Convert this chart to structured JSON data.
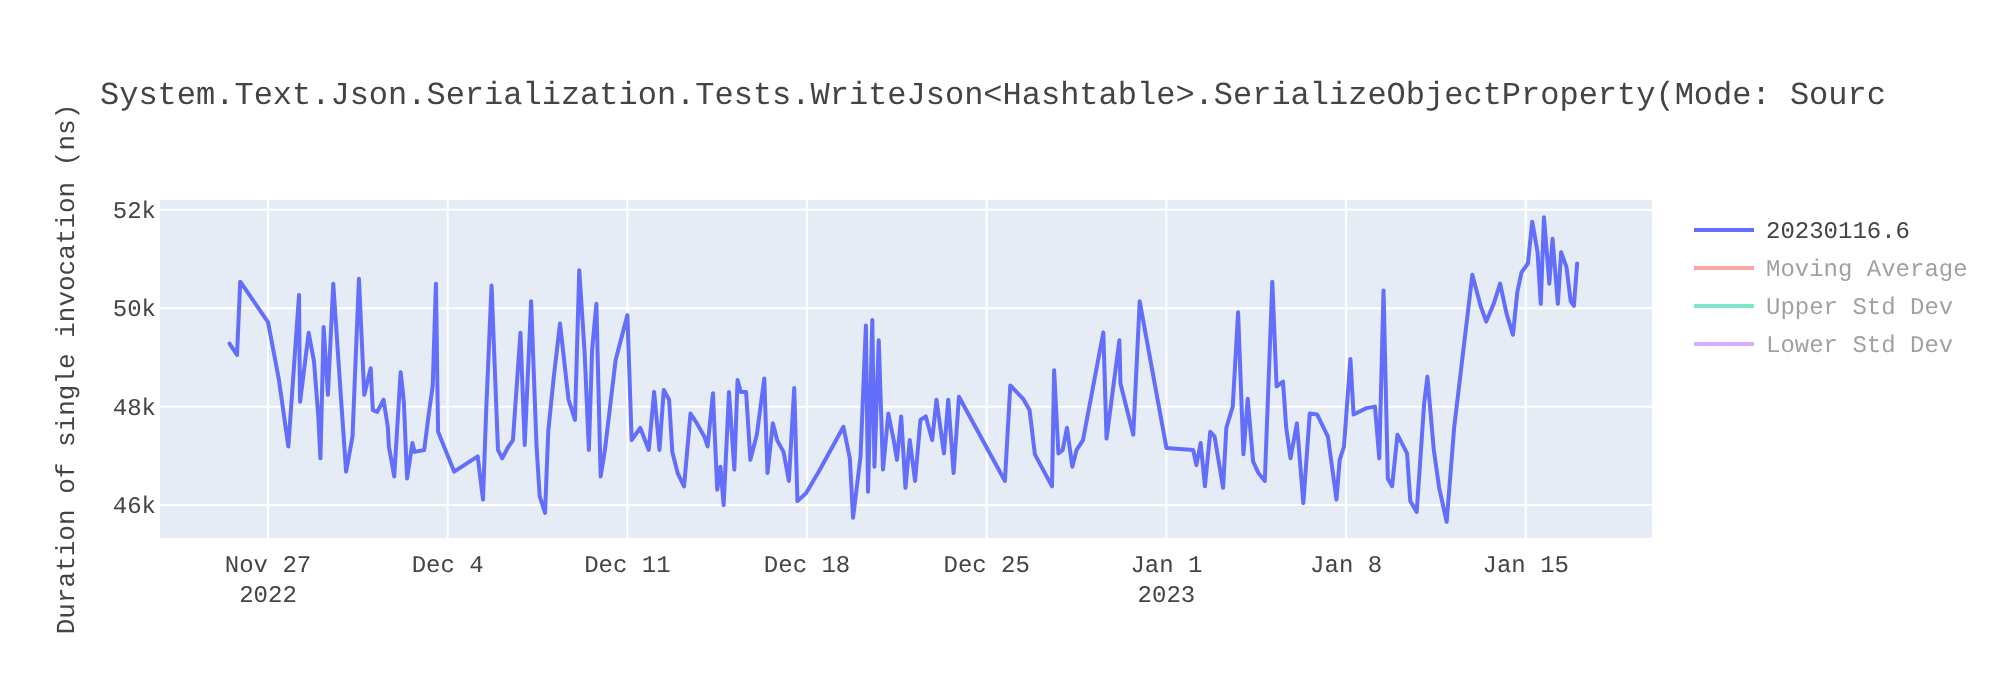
{
  "chart_data": {
    "type": "line",
    "title": "System.Text.Json.Serialization.Tests.WriteJson<Hashtable>.SerializeObjectProperty(Mode: Sourc",
    "ylabel": "Duration of single invocation (ns)",
    "xlim": [
      "2022-11-22T19:00",
      "2023-01-19T22:00"
    ],
    "xticks": [
      {
        "value": "2022-11-27",
        "label": "Nov 27\n2022"
      },
      {
        "value": "2022-12-04",
        "label": "Dec 4"
      },
      {
        "value": "2022-12-11",
        "label": "Dec 11"
      },
      {
        "value": "2022-12-18",
        "label": "Dec 18"
      },
      {
        "value": "2022-12-25",
        "label": "Dec 25"
      },
      {
        "value": "2023-01-01",
        "label": "Jan 1\n2023"
      },
      {
        "value": "2023-01-08",
        "label": "Jan 8"
      },
      {
        "value": "2023-01-15",
        "label": "Jan 15"
      }
    ],
    "ylim": [
      45330,
      52200
    ],
    "yticks": [
      {
        "value": 46000,
        "label": "46k"
      },
      {
        "value": 48000,
        "label": "48k"
      },
      {
        "value": 50000,
        "label": "50k"
      },
      {
        "value": 52000,
        "label": "52k"
      }
    ],
    "grid": true,
    "legend": "top right",
    "series": [
      {
        "name": "20230116.6",
        "color": "#636efa",
        "x": [
          "2022-11-25T12:00",
          "2022-11-25T19:00",
          "2022-11-25T22:00",
          "2022-11-27T00:00",
          "2022-11-27T10:00",
          "2022-11-27T19:00",
          "2022-11-28T05:00",
          "2022-11-28T05:30",
          "2022-11-28T06:00",
          "2022-11-28T14:00",
          "2022-11-28T19:00",
          "2022-11-28T23:00",
          "2022-11-29T01:00",
          "2022-11-29T04:00",
          "2022-11-29T08:00",
          "2022-11-29T13:00",
          "2022-11-29T20:00",
          "2022-11-30T01:00",
          "2022-11-30T07:00",
          "2022-11-30T13:00",
          "2022-11-30T18:00",
          "2022-12-01T00:00",
          "2022-12-01T02:00",
          "2022-12-01T06:00",
          "2022-12-01T12:00",
          "2022-12-01T16:00",
          "2022-12-01T17:00",
          "2022-12-01T22:00",
          "2022-12-02T04:00",
          "2022-12-02T07:00",
          "2022-12-02T10:00",
          "2022-12-02T15:00",
          "2022-12-02T17:00",
          "2022-12-03T02:00",
          "2022-12-03T06:00",
          "2022-12-03T10:00",
          "2022-12-03T13:00",
          "2022-12-03T15:00",
          "2022-12-04T06:00",
          "2022-12-05T04:00",
          "2022-12-05T09:00",
          "2022-12-05T12:00",
          "2022-12-05T17:00",
          "2022-12-05T23:00",
          "2022-12-06T03:00",
          "2022-12-06T08:00",
          "2022-12-06T13:00",
          "2022-12-06T20:00",
          "2022-12-07T00:00",
          "2022-12-07T06:00",
          "2022-12-07T11:00",
          "2022-12-07T14:00",
          "2022-12-07T19:00",
          "2022-12-07T22:00",
          "2022-12-08T03:00",
          "2022-12-08T09:00",
          "2022-12-08T17:00",
          "2022-12-08T23:00",
          "2022-12-09T03:00",
          "2022-12-09T08:00",
          "2022-12-09T12:00",
          "2022-12-09T15:00",
          "2022-12-09T19:00",
          "2022-12-09T23:00",
          "2022-12-10T03:00",
          "2022-12-10T13:00",
          "2022-12-11T00:00",
          "2022-12-11T04:00",
          "2022-12-11T12:00",
          "2022-12-11T20:00",
          "2022-12-12T01:00",
          "2022-12-12T06:00",
          "2022-12-12T10:00",
          "2022-12-12T15:00",
          "2022-12-12T18:00",
          "2022-12-12T23:00",
          "2022-12-13T05:00",
          "2022-12-13T11:00",
          "2022-12-13T17:00",
          "2022-12-14T00:00",
          "2022-12-14T03:00",
          "2022-12-14T08:00",
          "2022-12-14T12:00",
          "2022-12-14T15:00",
          "2022-12-14T18:00",
          "2022-12-14T23:00",
          "2022-12-15T04:00",
          "2022-12-15T07:00",
          "2022-12-15T10:00",
          "2022-12-15T15:00",
          "2022-12-15T19:00",
          "2022-12-16T01:00",
          "2022-12-16T08:00",
          "2022-12-16T11:00",
          "2022-12-16T16:00",
          "2022-12-16T20:00",
          "2022-12-17T02:00",
          "2022-12-17T07:00",
          "2022-12-17T12:00",
          "2022-12-17T15:00",
          "2022-12-17T23:00",
          "2022-12-18T11:00",
          "2022-12-19T10:00",
          "2022-12-19T16:00",
          "2022-12-19T19:00",
          "2022-12-20T02:00",
          "2022-12-20T07:00",
          "2022-12-20T09:00",
          "2022-12-20T13:00",
          "2022-12-20T15:00",
          "2022-12-20T19:00",
          "2022-12-20T23:00",
          "2022-12-21T04:00",
          "2022-12-21T09:00",
          "2022-12-21T12:00",
          "2022-12-21T16:00",
          "2022-12-21T20:00",
          "2022-12-22T00:00",
          "2022-12-22T05:00",
          "2022-12-22T10:00",
          "2022-12-22T15:00",
          "2022-12-22T21:00",
          "2022-12-23T01:00",
          "2022-12-23T08:00",
          "2022-12-23T12:00",
          "2022-12-23T17:00",
          "2022-12-23T22:00",
          "2022-12-25T17:00",
          "2022-12-25T22:00",
          "2022-12-26T10:00",
          "2022-12-26T16:00",
          "2022-12-26T21:00",
          "2022-12-27T13:00",
          "2022-12-27T15:00",
          "2022-12-27T19:00",
          "2022-12-27T23:00",
          "2022-12-28T03:00",
          "2022-12-28T08:00",
          "2022-12-28T12:00",
          "2022-12-28T18:00",
          "2022-12-29T13:00",
          "2022-12-29T16:00",
          "2022-12-30T04:00",
          "2022-12-30T05:00",
          "2022-12-30T17:00",
          "2022-12-30T23:00",
          "2023-01-01T00:00",
          "2023-01-02T01:00",
          "2023-01-02T04:00",
          "2023-01-02T08:00",
          "2023-01-02T12:00",
          "2023-01-02T17:00",
          "2023-01-02T21:00",
          "2023-01-03T05:00",
          "2023-01-03T08:00",
          "2023-01-03T14:00",
          "2023-01-03T19:00",
          "2023-01-04T00:00",
          "2023-01-04T04:00",
          "2023-01-04T09:00",
          "2023-01-04T14:00",
          "2023-01-04T20:00",
          "2023-01-05T03:00",
          "2023-01-05T07:00",
          "2023-01-05T13:00",
          "2023-01-05T16:00",
          "2023-01-05T20:00",
          "2023-01-06T02:00",
          "2023-01-06T08:00",
          "2023-01-06T14:00",
          "2023-01-06T21:00",
          "2023-01-07T03:00",
          "2023-01-07T07:00",
          "2023-01-07T15:00",
          "2023-01-07T18:00",
          "2023-01-07T22:00",
          "2023-01-08T04:00",
          "2023-01-08T07:00",
          "2023-01-08T19:00",
          "2023-01-09T03:00",
          "2023-01-09T07:00",
          "2023-01-09T11:00",
          "2023-01-09T15:00",
          "2023-01-09T19:00",
          "2023-01-10T00:00",
          "2023-01-10T09:00",
          "2023-01-10T12:00",
          "2023-01-10T18:00",
          "2023-01-11T01:00",
          "2023-01-11T04:00",
          "2023-01-11T10:00",
          "2023-01-11T15:00",
          "2023-01-11T22:00",
          "2023-01-12T05:00",
          "2023-01-12T22:00",
          "2023-01-13T06:00",
          "2023-01-13T11:00",
          "2023-01-13T18:00",
          "2023-01-14T00:00",
          "2023-01-14T06:00",
          "2023-01-14T12:00",
          "2023-01-14T16:00",
          "2023-01-14T20:00",
          "2023-01-15T02:00",
          "2023-01-15T06:00",
          "2023-01-15T11:00",
          "2023-01-15T14:00",
          "2023-01-15T17:00",
          "2023-01-15T22:00",
          "2023-01-16T01:00",
          "2023-01-16T06:00",
          "2023-01-16T09:00",
          "2023-01-16T14:00",
          "2023-01-16T18:00",
          "2023-01-16T21:00",
          "2023-01-17T00:00"
        ],
        "values": [
          49280,
          49050,
          50540,
          49720,
          48570,
          47190,
          50270,
          48920,
          48100,
          49500,
          48920,
          47800,
          46950,
          49620,
          48240,
          50500,
          48240,
          46680,
          47390,
          50600,
          48240,
          48780,
          47930,
          47890,
          48140,
          47590,
          47190,
          46580,
          48700,
          48100,
          46540,
          47260,
          47080,
          47120,
          47800,
          48430,
          50500,
          47490,
          46680,
          46990,
          46110,
          47930,
          50460,
          47120,
          46950,
          47160,
          47320,
          49500,
          47220,
          50140,
          47220,
          46180,
          45840,
          47490,
          48570,
          49690,
          48140,
          47730,
          50770,
          49110,
          47120,
          49150,
          50090,
          46580,
          47120,
          48950,
          49860,
          47320,
          47570,
          47120,
          48300,
          47120,
          48340,
          48140,
          47080,
          46650,
          46380,
          47860,
          47660,
          47390,
          47190,
          48270,
          46310,
          46780,
          46000,
          48300,
          46720,
          48540,
          48300,
          48300,
          46920,
          47430,
          48570,
          46650,
          47660,
          47320,
          47080,
          46490,
          48380,
          46080,
          46240,
          46680,
          47590,
          46950,
          45740,
          46990,
          49650,
          46270,
          49760,
          46780,
          49350,
          46720,
          47860,
          47320,
          46920,
          47800,
          46350,
          47320,
          46490,
          47730,
          47800,
          47320,
          48140,
          47050,
          48140,
          46650,
          48200,
          46490,
          48430,
          48160,
          47930,
          47030,
          46380,
          48740,
          47050,
          47120,
          47570,
          46780,
          47120,
          47320,
          49510,
          47350,
          49350,
          48470,
          47430,
          50140,
          47160,
          47120,
          46810,
          47260,
          46380,
          47490,
          47390,
          46350,
          47570,
          48000,
          49920,
          47030,
          48160,
          46890,
          46650,
          46490,
          50540,
          48410,
          48510,
          47570,
          46950,
          47660,
          46040,
          47860,
          47840,
          47570,
          47390,
          46110,
          46920,
          47190,
          48970,
          47840,
          47970,
          48000,
          46950,
          50360,
          46540,
          46380,
          47430,
          47050,
          46080,
          45860,
          48070,
          48610,
          47120,
          46350,
          45660,
          47570,
          50680,
          50030,
          49730,
          50090,
          50500,
          49890,
          49460,
          50320,
          50730,
          50910,
          51760,
          51140,
          50090,
          51850,
          50500,
          51410,
          50090,
          51140,
          50840,
          50140,
          50050,
          50910
        ]
      },
      {
        "name": "Moving Average",
        "color": "#ef553b"
      },
      {
        "name": "Upper Std Dev",
        "color": "#00cc96"
      },
      {
        "name": "Lower Std Dev",
        "color": "#ab63fa"
      }
    ]
  }
}
